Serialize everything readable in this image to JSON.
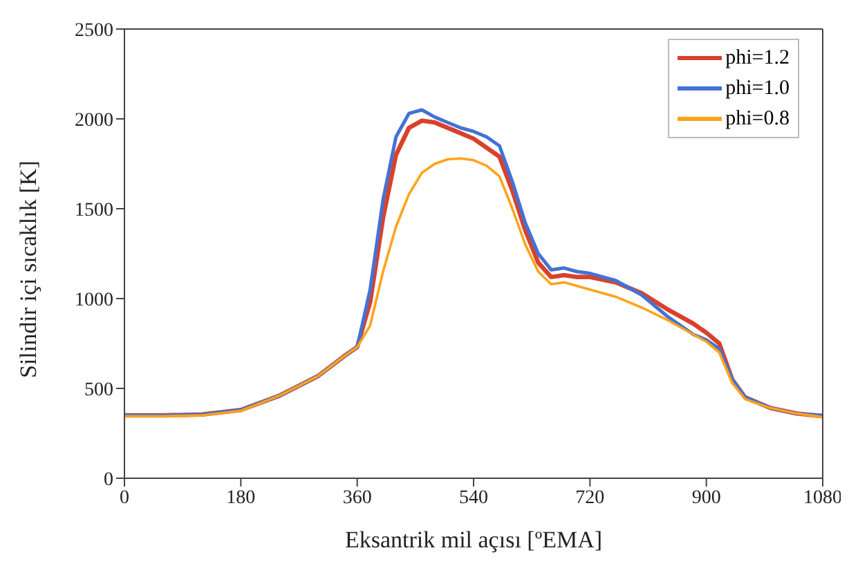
{
  "chart_data": {
    "type": "line",
    "xlabel": "Eksantrik mil açısı [ºEMA]",
    "ylabel": "Silindir içi sıcaklık [K]",
    "x": [
      0,
      60,
      120,
      180,
      240,
      300,
      340,
      360,
      380,
      400,
      420,
      440,
      460,
      480,
      500,
      520,
      540,
      560,
      580,
      600,
      620,
      640,
      660,
      680,
      700,
      720,
      760,
      800,
      840,
      880,
      900,
      920,
      940,
      960,
      1000,
      1040,
      1080
    ],
    "series": [
      {
        "name": "phi=1.2",
        "color": "#d9412b",
        "values": [
          350,
          350,
          355,
          380,
          460,
          570,
          680,
          730,
          980,
          1450,
          1800,
          1950,
          1990,
          1980,
          1950,
          1920,
          1890,
          1840,
          1790,
          1600,
          1380,
          1200,
          1120,
          1130,
          1120,
          1120,
          1090,
          1030,
          940,
          860,
          810,
          750,
          550,
          450,
          390,
          360,
          345
        ]
      },
      {
        "name": "phi=1.0",
        "color": "#4472d4",
        "values": [
          350,
          350,
          355,
          380,
          460,
          570,
          680,
          730,
          1050,
          1550,
          1900,
          2030,
          2050,
          2010,
          1980,
          1950,
          1930,
          1900,
          1850,
          1650,
          1420,
          1250,
          1160,
          1170,
          1150,
          1140,
          1100,
          1020,
          900,
          800,
          770,
          720,
          550,
          450,
          390,
          360,
          350
        ]
      },
      {
        "name": "phi=0.8",
        "color": "#ffa31a",
        "values": [
          345,
          345,
          350,
          375,
          460,
          570,
          680,
          730,
          850,
          1150,
          1400,
          1580,
          1700,
          1750,
          1775,
          1780,
          1770,
          1740,
          1680,
          1500,
          1300,
          1150,
          1080,
          1090,
          1070,
          1050,
          1010,
          950,
          880,
          800,
          760,
          700,
          530,
          440,
          390,
          360,
          340
        ]
      }
    ],
    "xlim": [
      0,
      1080
    ],
    "xticks": [
      0,
      180,
      360,
      540,
      720,
      900,
      1080
    ],
    "ylim": [
      0,
      2500
    ],
    "yticks": [
      0,
      500,
      1000,
      1500,
      2000,
      2500
    ],
    "grid": false,
    "legend": "top right",
    "marker": "none",
    "line_style": "solid"
  }
}
